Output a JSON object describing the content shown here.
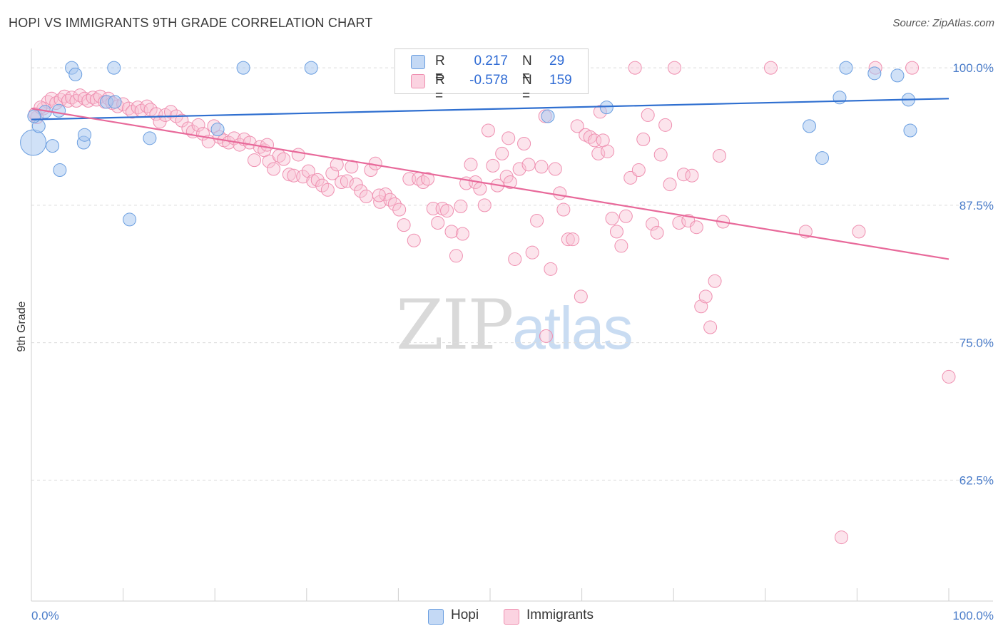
{
  "header": {
    "title": "HOPI VS IMMIGRANTS 9TH GRADE CORRELATION CHART",
    "source": "Source: ZipAtlas.com"
  },
  "legend": {
    "hopi": {
      "r_label": "R =",
      "r_value": "0.217",
      "n_label": "N =",
      "n_value": "29"
    },
    "immigrants": {
      "r_label": "R =",
      "r_value": "-0.578",
      "n_label": "N =",
      "n_value": "159"
    }
  },
  "watermark": {
    "zip": "ZIP",
    "atlas": "atlas"
  },
  "colors": {
    "hopi_fill": "#a9c8f0",
    "hopi_stroke": "#6a9ee0",
    "hopi_line": "#2f6fd0",
    "imm_fill": "#f9c3d5",
    "imm_stroke": "#ef8fb0",
    "imm_line": "#e8699a",
    "grid": "#dcdcdc",
    "axis_text": "#4a7cc9"
  },
  "chart_data": {
    "type": "scatter",
    "title": "HOPI VS IMMIGRANTS 9TH GRADE CORRELATION CHART",
    "xlabel": "",
    "ylabel": "9th Grade",
    "xlim": [
      0,
      100
    ],
    "ylim": [
      51.5,
      101.5
    ],
    "x_tick_labels": [
      "0.0%",
      "100.0%"
    ],
    "y_ticks": [
      62.5,
      75.0,
      87.5,
      100.0
    ],
    "y_tick_labels": [
      "62.5%",
      "75.0%",
      "87.5%",
      "100.0%"
    ],
    "grid": "horizontal dashed",
    "legend_placement": "top-center and bottom",
    "series": [
      {
        "name": "Hopi",
        "trend": {
          "x": [
            0,
            100
          ],
          "y": [
            95.3,
            97.2
          ]
        },
        "points": [
          [
            0.2,
            93.2,
            18
          ],
          [
            0.8,
            94.7,
            9
          ],
          [
            1.5,
            96.0,
            9
          ],
          [
            2.3,
            92.9,
            9
          ],
          [
            3.1,
            90.7,
            9
          ],
          [
            3.0,
            96.1,
            9
          ],
          [
            4.4,
            100.0,
            9
          ],
          [
            4.8,
            99.4,
            9
          ],
          [
            5.7,
            93.2,
            9
          ],
          [
            5.8,
            93.9,
            9
          ],
          [
            8.2,
            96.9,
            9
          ],
          [
            9.1,
            96.9,
            9
          ],
          [
            9.0,
            100.0,
            9
          ],
          [
            10.7,
            86.2,
            9
          ],
          [
            12.9,
            93.6,
            9
          ],
          [
            20.3,
            94.4,
            9
          ],
          [
            23.1,
            100.0,
            9
          ],
          [
            30.5,
            100.0,
            9
          ],
          [
            56.3,
            95.6,
            9
          ],
          [
            62.7,
            96.4,
            9
          ],
          [
            84.8,
            94.7,
            9
          ],
          [
            86.2,
            91.8,
            9
          ],
          [
            88.1,
            97.3,
            9
          ],
          [
            88.8,
            100.0,
            9
          ],
          [
            91.9,
            99.5,
            9
          ],
          [
            94.4,
            99.3,
            9
          ],
          [
            95.6,
            97.1,
            9
          ],
          [
            95.8,
            94.3,
            9
          ],
          [
            0.3,
            95.6,
            9
          ]
        ]
      },
      {
        "name": "Immigrants",
        "trend": {
          "x": [
            0,
            100
          ],
          "y": [
            96.3,
            82.6
          ]
        },
        "points": [
          [
            0.6,
            95.5,
            9
          ],
          [
            1.3,
            96.3,
            9
          ],
          [
            1.8,
            96.9,
            9
          ],
          [
            2.2,
            97.2,
            9
          ],
          [
            2.7,
            96.8,
            9
          ],
          [
            3.2,
            97.1,
            9
          ],
          [
            3.6,
            97.4,
            9
          ],
          [
            4.0,
            97.0,
            9
          ],
          [
            4.4,
            97.3,
            9
          ],
          [
            4.9,
            97.0,
            9
          ],
          [
            5.3,
            97.5,
            9
          ],
          [
            5.8,
            97.2,
            9
          ],
          [
            6.2,
            97.0,
            9
          ],
          [
            6.7,
            97.3,
            9
          ],
          [
            7.1,
            97.1,
            9
          ],
          [
            7.5,
            97.4,
            9
          ],
          [
            8.0,
            96.9,
            9
          ],
          [
            8.4,
            97.2,
            9
          ],
          [
            8.8,
            96.8,
            9
          ],
          [
            9.4,
            96.5,
            9
          ],
          [
            10.0,
            96.7,
            9
          ],
          [
            10.6,
            96.3,
            9
          ],
          [
            11.0,
            96.0,
            9
          ],
          [
            11.6,
            96.4,
            9
          ],
          [
            12.0,
            96.1,
            9
          ],
          [
            12.6,
            96.5,
            9
          ],
          [
            13.0,
            96.2,
            9
          ],
          [
            13.6,
            95.8,
            9
          ],
          [
            14.0,
            95.1,
            9
          ],
          [
            14.6,
            95.7,
            9
          ],
          [
            15.2,
            96.0,
            9
          ],
          [
            15.8,
            95.6,
            9
          ],
          [
            16.4,
            95.2,
            9
          ],
          [
            17.1,
            94.5,
            9
          ],
          [
            17.6,
            94.2,
            9
          ],
          [
            18.2,
            94.8,
            9
          ],
          [
            18.7,
            94.0,
            9
          ],
          [
            19.3,
            93.3,
            9
          ],
          [
            19.9,
            94.7,
            9
          ],
          [
            20.5,
            93.7,
            9
          ],
          [
            21.0,
            93.4,
            9
          ],
          [
            21.5,
            93.2,
            9
          ],
          [
            22.1,
            93.6,
            9
          ],
          [
            22.7,
            93.0,
            9
          ],
          [
            23.2,
            93.5,
            9
          ],
          [
            23.8,
            93.2,
            9
          ],
          [
            24.3,
            91.6,
            9
          ],
          [
            24.9,
            92.8,
            9
          ],
          [
            25.4,
            92.5,
            9
          ],
          [
            25.9,
            91.5,
            9
          ],
          [
            26.4,
            90.8,
            9
          ],
          [
            27.0,
            92.0,
            9
          ],
          [
            27.5,
            91.7,
            9
          ],
          [
            28.1,
            90.3,
            9
          ],
          [
            28.6,
            90.2,
            9
          ],
          [
            29.1,
            92.1,
            9
          ],
          [
            29.6,
            90.1,
            9
          ],
          [
            30.2,
            90.6,
            9
          ],
          [
            30.7,
            89.7,
            9
          ],
          [
            31.2,
            89.8,
            9
          ],
          [
            31.7,
            89.3,
            9
          ],
          [
            32.3,
            88.9,
            9
          ],
          [
            32.8,
            90.4,
            9
          ],
          [
            33.3,
            91.2,
            9
          ],
          [
            33.8,
            89.6,
            9
          ],
          [
            34.4,
            89.7,
            9
          ],
          [
            34.9,
            91.0,
            9
          ],
          [
            35.4,
            89.4,
            9
          ],
          [
            35.9,
            88.8,
            9
          ],
          [
            36.5,
            88.3,
            9
          ],
          [
            37.0,
            90.7,
            9
          ],
          [
            37.5,
            91.3,
            9
          ],
          [
            38.0,
            87.8,
            9
          ],
          [
            38.6,
            88.5,
            9
          ],
          [
            39.1,
            88.0,
            9
          ],
          [
            39.6,
            87.6,
            9
          ],
          [
            40.1,
            87.1,
            9
          ],
          [
            40.6,
            85.7,
            9
          ],
          [
            41.2,
            89.9,
            9
          ],
          [
            41.7,
            84.3,
            9
          ],
          [
            42.2,
            89.9,
            9
          ],
          [
            42.7,
            89.6,
            9
          ],
          [
            43.2,
            89.9,
            9
          ],
          [
            43.8,
            87.2,
            9
          ],
          [
            44.3,
            85.9,
            9
          ],
          [
            44.8,
            87.2,
            9
          ],
          [
            45.3,
            87.0,
            9
          ],
          [
            45.8,
            85.1,
            9
          ],
          [
            46.3,
            82.9,
            9
          ],
          [
            46.8,
            87.4,
            9
          ],
          [
            47.4,
            89.5,
            9
          ],
          [
            47.9,
            91.2,
            9
          ],
          [
            48.4,
            89.6,
            9
          ],
          [
            48.9,
            89.0,
            9
          ],
          [
            49.4,
            87.5,
            9
          ],
          [
            49.8,
            94.3,
            9
          ],
          [
            50.3,
            91.1,
            9
          ],
          [
            50.8,
            89.3,
            9
          ],
          [
            51.3,
            92.2,
            9
          ],
          [
            51.8,
            90.1,
            9
          ],
          [
            52.2,
            89.6,
            9
          ],
          [
            52.7,
            82.6,
            9
          ],
          [
            53.2,
            90.8,
            9
          ],
          [
            53.7,
            93.1,
            9
          ],
          [
            54.2,
            91.2,
            9
          ],
          [
            54.6,
            83.2,
            9
          ],
          [
            55.1,
            86.1,
            9
          ],
          [
            55.6,
            91.0,
            9
          ],
          [
            56.1,
            75.6,
            9
          ],
          [
            56.6,
            81.7,
            9
          ],
          [
            57.1,
            90.8,
            9
          ],
          [
            57.6,
            88.6,
            9
          ],
          [
            58.0,
            87.1,
            9
          ],
          [
            58.5,
            84.4,
            9
          ],
          [
            59.0,
            84.4,
            9
          ],
          [
            59.5,
            94.7,
            9
          ],
          [
            59.9,
            79.2,
            9
          ],
          [
            60.4,
            93.9,
            9
          ],
          [
            60.9,
            93.7,
            9
          ],
          [
            61.4,
            93.4,
            9
          ],
          [
            61.8,
            92.2,
            9
          ],
          [
            62.3,
            93.4,
            9
          ],
          [
            62.8,
            92.4,
            9
          ],
          [
            63.3,
            86.3,
            9
          ],
          [
            63.8,
            85.1,
            9
          ],
          [
            64.3,
            83.8,
            9
          ],
          [
            64.8,
            86.5,
            9
          ],
          [
            65.3,
            90.0,
            9
          ],
          [
            65.8,
            100.0,
            9
          ],
          [
            66.2,
            90.7,
            9
          ],
          [
            66.7,
            93.5,
            9
          ],
          [
            67.2,
            95.7,
            9
          ],
          [
            67.7,
            85.8,
            9
          ],
          [
            68.2,
            85.0,
            9
          ],
          [
            68.6,
            92.1,
            9
          ],
          [
            69.1,
            94.8,
            9
          ],
          [
            69.6,
            89.4,
            9
          ],
          [
            70.1,
            100.0,
            9
          ],
          [
            70.6,
            85.9,
            9
          ],
          [
            71.1,
            90.3,
            9
          ],
          [
            71.6,
            86.1,
            9
          ],
          [
            72.0,
            90.2,
            9
          ],
          [
            72.5,
            85.5,
            9
          ],
          [
            73.0,
            78.3,
            9
          ],
          [
            73.5,
            79.2,
            9
          ],
          [
            74.0,
            76.4,
            9
          ],
          [
            74.5,
            80.6,
            9
          ],
          [
            75.0,
            92.0,
            9
          ],
          [
            75.4,
            86.0,
            9
          ],
          [
            80.6,
            100.0,
            9
          ],
          [
            84.4,
            85.1,
            9
          ],
          [
            88.3,
            57.3,
            9
          ],
          [
            90.2,
            85.1,
            9
          ],
          [
            96.0,
            100.0,
            9
          ],
          [
            100.0,
            71.9,
            9
          ],
          [
            0.4,
            95.8,
            9
          ],
          [
            1.0,
            96.4,
            9
          ],
          [
            25.7,
            93.0,
            9
          ],
          [
            37.9,
            88.4,
            9
          ],
          [
            47.0,
            84.9,
            9
          ],
          [
            52.0,
            93.6,
            9
          ],
          [
            56.0,
            95.6,
            9
          ],
          [
            62.0,
            96.0,
            9
          ],
          [
            92.0,
            100.0,
            9
          ]
        ]
      }
    ]
  },
  "bottom_legend": {
    "hopi": "Hopi",
    "immigrants": "Immigrants"
  }
}
